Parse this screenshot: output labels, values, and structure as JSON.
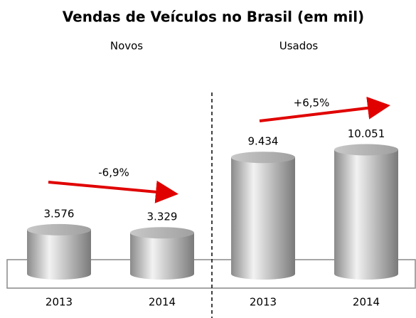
{
  "chart_data": {
    "type": "bar",
    "title": "Vendas de Veículos no Brasil (em mil)",
    "groups": [
      "Novos",
      "Usados"
    ],
    "categories": [
      "2013",
      "2014",
      "2013",
      "2014"
    ],
    "values": [
      3576,
      3329,
      9434,
      10051
    ],
    "value_labels": [
      "3.576",
      "3.329",
      "9.434",
      "10.051"
    ],
    "annotations": [
      "-6,9%",
      "+6,5%"
    ],
    "ylim": [
      0,
      11000
    ]
  }
}
